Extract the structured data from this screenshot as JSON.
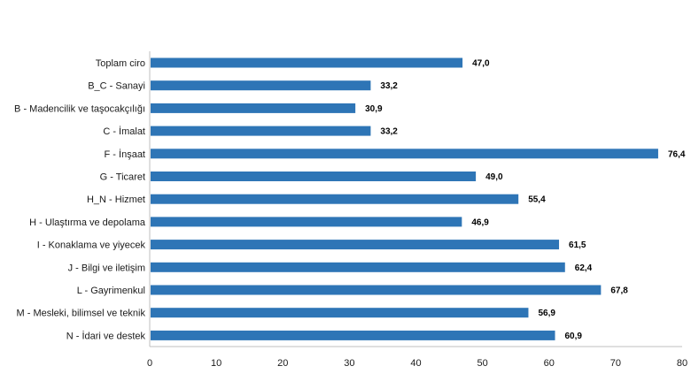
{
  "chart_data": {
    "type": "bar",
    "orientation": "horizontal",
    "categories": [
      "Toplam ciro",
      "B_C - Sanayi",
      "B - Madencilik ve taşocakçılığı",
      "C - İmalat",
      "F - İnşaat",
      "G - Ticaret",
      "H_N - Hizmet",
      "H - Ulaştırma ve depolama",
      "I - Konaklama ve yiyecek",
      "J - Bilgi ve iletişim",
      "L - Gayrimenkul",
      "M - Mesleki, bilimsel ve teknik",
      "N - İdari ve destek"
    ],
    "values": [
      47.0,
      33.2,
      30.9,
      33.2,
      76.4,
      49.0,
      55.4,
      46.9,
      61.5,
      62.4,
      67.8,
      56.9,
      60.9
    ],
    "value_labels": [
      "47,0",
      "33,2",
      "30,9",
      "33,2",
      "76,4",
      "49,0",
      "55,4",
      "46,9",
      "61,5",
      "62,4",
      "67,8",
      "56,9",
      "60,9"
    ],
    "xticks": [
      "0",
      "10",
      "20",
      "30",
      "40",
      "50",
      "60",
      "70",
      "80"
    ],
    "xlim": [
      0,
      80
    ],
    "grid": false,
    "bar_color": "#2e75b6",
    "axis_color": "#bfbfbf"
  }
}
